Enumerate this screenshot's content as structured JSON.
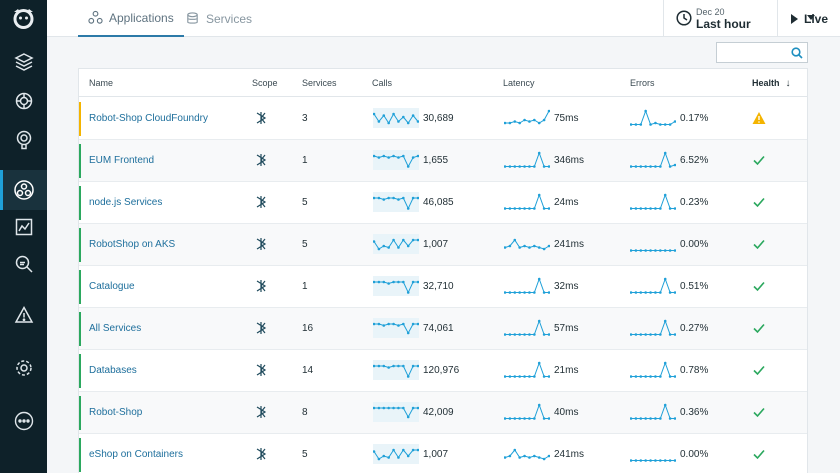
{
  "colors": {
    "nav_bg": "#0e2129",
    "accent": "#1fa0d8",
    "link": "#1e6f9c",
    "ok": "#2ba85e",
    "warning": "#f4b400"
  },
  "nav": {
    "items": [
      "layers-icon",
      "infrastructure-icon",
      "platform-icon",
      "applications-icon",
      "dashboards-icon",
      "analyze-icon",
      "events-icon",
      "settings-icon",
      "more-icon"
    ]
  },
  "header": {
    "tabs": [
      {
        "label": "Applications",
        "icon": "applications-icon",
        "active": true
      },
      {
        "label": "Services",
        "icon": "database-icon",
        "active": false
      }
    ],
    "timepicker": {
      "date": "Dec 20",
      "range": "Last hour"
    },
    "live_label": "Live"
  },
  "search": {
    "value": "",
    "placeholder": ""
  },
  "table": {
    "columns": {
      "name": "Name",
      "scope": "Scope",
      "services": "Services",
      "calls": "Calls",
      "latency": "Latency",
      "errors": "Errors",
      "health": "Health"
    },
    "rows": [
      {
        "name": "Robot-Shop CloudFoundry",
        "services": "3",
        "calls": "30,689",
        "latency": "75ms",
        "errors": "0.17%",
        "health": "warning",
        "calls_trend": [
          8,
          3,
          7,
          2,
          8,
          3,
          6,
          2,
          7,
          3
        ],
        "latency_trend": [
          2,
          2,
          3,
          2,
          4,
          3,
          4,
          2,
          4,
          10
        ],
        "errors_trend": [
          1,
          1,
          1,
          10,
          1,
          2,
          1,
          1,
          1,
          3
        ]
      },
      {
        "name": "EUM Frontend",
        "services": "1",
        "calls": "1,655",
        "latency": "346ms",
        "errors": "6.52%",
        "health": "ok",
        "calls_trend": [
          8,
          7,
          8,
          7,
          8,
          7,
          8,
          1,
          7,
          8
        ],
        "latency_trend": [
          1,
          1,
          1,
          1,
          1,
          1,
          1,
          10,
          1,
          1
        ],
        "errors_trend": [
          1,
          1,
          1,
          1,
          1,
          1,
          1,
          10,
          1,
          2
        ]
      },
      {
        "name": "node.js Services",
        "services": "5",
        "calls": "46,085",
        "latency": "24ms",
        "errors": "0.23%",
        "health": "ok",
        "calls_trend": [
          8,
          8,
          7,
          8,
          8,
          7,
          8,
          1,
          8,
          8
        ],
        "latency_trend": [
          1,
          1,
          1,
          1,
          1,
          1,
          1,
          10,
          1,
          1
        ],
        "errors_trend": [
          1,
          1,
          1,
          1,
          1,
          1,
          1,
          10,
          1,
          1
        ]
      },
      {
        "name": "RobotShop on AKS",
        "services": "5",
        "calls": "1,007",
        "latency": "241ms",
        "errors": "0.00%",
        "health": "ok",
        "calls_trend": [
          7,
          2,
          4,
          3,
          8,
          3,
          8,
          4,
          8,
          8
        ],
        "latency_trend": [
          3,
          4,
          8,
          3,
          4,
          3,
          4,
          3,
          2,
          4
        ],
        "errors_trend": [
          1,
          1,
          1,
          1,
          1,
          1,
          1,
          1,
          1,
          1
        ]
      },
      {
        "name": "Catalogue",
        "services": "1",
        "calls": "32,710",
        "latency": "32ms",
        "errors": "0.51%",
        "health": "ok",
        "calls_trend": [
          8,
          8,
          8,
          7,
          8,
          8,
          8,
          1,
          8,
          8
        ],
        "latency_trend": [
          1,
          1,
          1,
          1,
          1,
          1,
          1,
          10,
          1,
          1
        ],
        "errors_trend": [
          1,
          1,
          1,
          1,
          1,
          1,
          1,
          10,
          1,
          1
        ]
      },
      {
        "name": "All Services",
        "services": "16",
        "calls": "74,061",
        "latency": "57ms",
        "errors": "0.27%",
        "health": "ok",
        "calls_trend": [
          8,
          8,
          7,
          8,
          8,
          7,
          8,
          2,
          8,
          8
        ],
        "latency_trend": [
          1,
          1,
          1,
          1,
          1,
          1,
          1,
          10,
          1,
          1
        ],
        "errors_trend": [
          1,
          1,
          1,
          1,
          1,
          1,
          1,
          10,
          1,
          1
        ]
      },
      {
        "name": "Databases",
        "services": "14",
        "calls": "120,976",
        "latency": "21ms",
        "errors": "0.78%",
        "health": "ok",
        "calls_trend": [
          8,
          8,
          8,
          7,
          8,
          8,
          8,
          1,
          8,
          8
        ],
        "latency_trend": [
          1,
          1,
          1,
          1,
          1,
          1,
          1,
          10,
          1,
          1
        ],
        "errors_trend": [
          1,
          1,
          1,
          1,
          1,
          1,
          1,
          10,
          1,
          1
        ]
      },
      {
        "name": "Robot-Shop",
        "services": "8",
        "calls": "42,009",
        "latency": "40ms",
        "errors": "0.36%",
        "health": "ok",
        "calls_trend": [
          8,
          8,
          8,
          8,
          8,
          8,
          8,
          2,
          8,
          8
        ],
        "latency_trend": [
          1,
          1,
          1,
          1,
          1,
          1,
          1,
          10,
          1,
          1
        ],
        "errors_trend": [
          1,
          1,
          1,
          1,
          1,
          1,
          1,
          10,
          1,
          1
        ]
      },
      {
        "name": "eShop on Containers",
        "services": "5",
        "calls": "1,007",
        "latency": "241ms",
        "errors": "0.00%",
        "health": "ok",
        "calls_trend": [
          7,
          2,
          4,
          3,
          8,
          3,
          8,
          4,
          8,
          8
        ],
        "latency_trend": [
          3,
          4,
          8,
          3,
          4,
          3,
          4,
          3,
          2,
          4
        ],
        "errors_trend": [
          1,
          1,
          1,
          1,
          1,
          1,
          1,
          1,
          1,
          1
        ]
      }
    ]
  }
}
